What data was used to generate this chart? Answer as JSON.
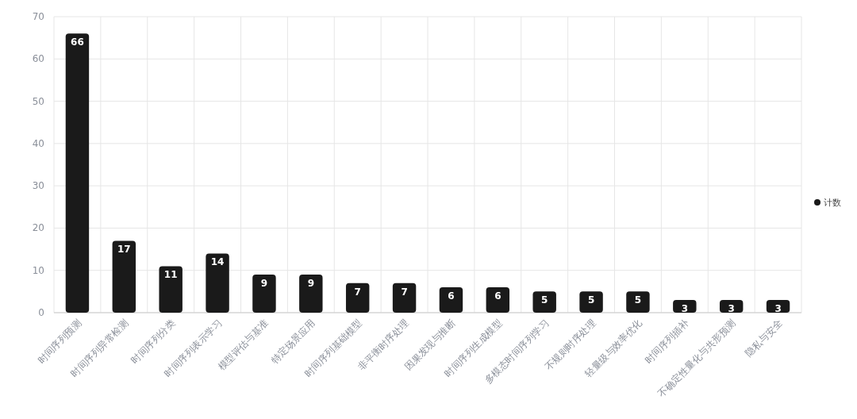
{
  "chart_data": {
    "type": "bar",
    "categories": [
      "时间序列预测",
      "时间序列异常检测",
      "时间序列分类",
      "时间序列表示学习",
      "模型评估与基准",
      "特定场景应用",
      "时间序列基础模型",
      "非平衡时序处理",
      "因果发现与推断",
      "时间序列生成模型",
      "多模态时间序列学习",
      "不规则时序处理",
      "轻量级与效率优化",
      "时间序列插补",
      "不确定性量化与共形预测",
      "隐私与安全"
    ],
    "series": [
      {
        "name": "计数",
        "color": "#1a1a1a",
        "values": [
          66,
          17,
          11,
          14,
          9,
          9,
          7,
          7,
          6,
          6,
          5,
          5,
          5,
          3,
          3,
          3
        ]
      }
    ],
    "ylim": [
      0,
      70
    ],
    "yticks": [
      0,
      10,
      20,
      30,
      40,
      50,
      60,
      70
    ],
    "grid": true,
    "legend": "right",
    "data_labels": true
  }
}
